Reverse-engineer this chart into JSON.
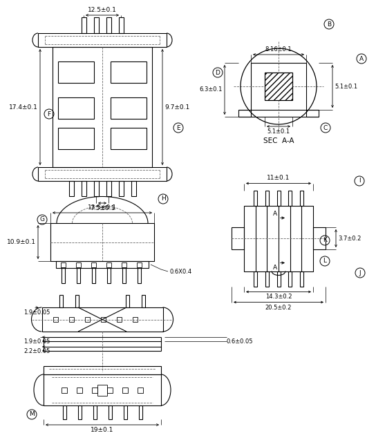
{
  "bg": "#ffffff",
  "lc": "#000000",
  "dc": "#666666",
  "labels": {
    "dim_12_5": "12.5±0.1",
    "dim_7_5": "7.5±0.1",
    "dim_17_4": "17.4±0.1",
    "dim_9_7": "9.7±0.1",
    "dim_8_16": "8.16±0.1",
    "dim_6_3": "6.3±0.1",
    "dim_5_1a": "5.1±0.1",
    "dim_5_1b": "5.1±0.1",
    "sec_aa": "SEC  A-A",
    "dim_13_5": "13.5±0.1",
    "dim_10_9": "10.9±0.1",
    "dim_0_6x0_4": "0.6X0.4",
    "dim_11": "11±0.1",
    "dim_14_3": "14.3±0.2",
    "dim_20_5": "20.5±0.2",
    "dim_3_7": "3.7±0.2",
    "dim_1_9": "1.9±0.05",
    "dim_0_6": "0.6±0.05",
    "dim_2_2": "2.2±0.05",
    "dim_19": "19±0.1"
  }
}
